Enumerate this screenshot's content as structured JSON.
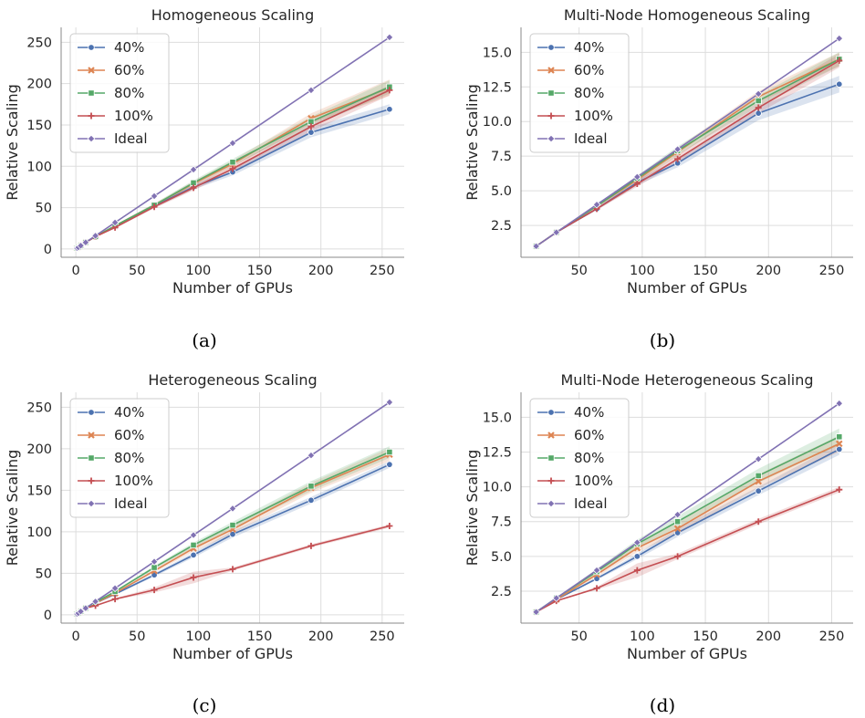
{
  "colors": {
    "40%": "#4c72b0",
    "60%": "#dd8452",
    "80%": "#55a868",
    "100%": "#c44e52",
    "Ideal": "#8172b3",
    "grid": "#dddddd",
    "axis": "#888888"
  },
  "markers": {
    "40%": "circle",
    "60%": "x-cross",
    "80%": "square",
    "100%": "plus",
    "Ideal": "diamond"
  },
  "chart_data": [
    {
      "type": "line",
      "title": "Homogeneous Scaling",
      "xlabel": "Number of GPUs",
      "ylabel": "Relative Scaling",
      "caption": "(a)",
      "grid": true,
      "legend": "top-left",
      "xlim": [
        -12,
        268
      ],
      "ylim": [
        -10,
        268
      ],
      "xticks": [
        0,
        50,
        100,
        150,
        200,
        250
      ],
      "yticks": [
        0,
        50,
        100,
        150,
        200,
        250
      ],
      "ytick_labels": [
        "0",
        "50",
        "100",
        "150",
        "200",
        "250"
      ],
      "x": [
        1,
        2,
        4,
        8,
        16,
        32,
        64,
        96,
        128,
        192,
        256
      ],
      "series": [
        {
          "name": "40%",
          "values": [
            1,
            2,
            4,
            8,
            15,
            28,
            52,
            75,
            93,
            141,
            169
          ],
          "band": [
            1,
            2,
            3,
            4,
            6,
            6
          ]
        },
        {
          "name": "60%",
          "values": [
            1,
            2,
            4,
            8,
            15,
            28,
            53,
            79,
            103,
            158,
            195
          ],
          "band": [
            1,
            2,
            3,
            4,
            6,
            10
          ]
        },
        {
          "name": "80%",
          "values": [
            1,
            2,
            4,
            8,
            15,
            28,
            53,
            80,
            105,
            154,
            196
          ],
          "band": [
            1,
            2,
            3,
            4,
            6,
            8
          ]
        },
        {
          "name": "100%",
          "values": [
            1,
            2,
            4,
            8,
            15,
            26,
            51,
            74,
            97,
            148,
            192
          ],
          "band": [
            1,
            2,
            3,
            4,
            6,
            6
          ]
        },
        {
          "name": "Ideal",
          "values": [
            1,
            2,
            4,
            8,
            16,
            32,
            64,
            96,
            128,
            192,
            256
          ]
        }
      ]
    },
    {
      "type": "line",
      "title": "Multi-Node Homogeneous Scaling",
      "xlabel": "Number of GPUs",
      "ylabel": "Relative Scaling",
      "caption": "(b)",
      "grid": true,
      "legend": "top-left",
      "xlim": [
        4,
        267
      ],
      "ylim": [
        0.2,
        16.8
      ],
      "xticks": [
        50,
        100,
        150,
        200,
        250
      ],
      "yticks": [
        2.5,
        5.0,
        7.5,
        10.0,
        12.5,
        15.0
      ],
      "ytick_labels": [
        "2.5",
        "5.0",
        "7.5",
        "10.0",
        "12.5",
        "15.0"
      ],
      "x": [
        16,
        32,
        64,
        96,
        128,
        192,
        256
      ],
      "series": [
        {
          "name": "40%",
          "values": [
            1,
            2,
            3.7,
            5.6,
            7.0,
            10.6,
            12.7
          ],
          "band": [
            0,
            0.1,
            0.2,
            0.3,
            0.5,
            0.6
          ]
        },
        {
          "name": "60%",
          "values": [
            1,
            2,
            3.9,
            5.8,
            7.8,
            11.8,
            14.5
          ],
          "band": [
            0,
            0.1,
            0.2,
            0.3,
            0.4,
            0.5
          ]
        },
        {
          "name": "80%",
          "values": [
            1,
            2,
            3.9,
            5.9,
            7.9,
            11.5,
            14.5
          ],
          "band": [
            0,
            0.1,
            0.2,
            0.3,
            0.4,
            0.5
          ]
        },
        {
          "name": "100%",
          "values": [
            1,
            2,
            3.7,
            5.5,
            7.3,
            11.0,
            14.4
          ],
          "band": [
            0,
            0.1,
            0.2,
            0.3,
            0.4,
            0.5
          ]
        },
        {
          "name": "Ideal",
          "values": [
            1,
            2,
            4,
            6,
            8,
            12,
            16
          ]
        }
      ]
    },
    {
      "type": "line",
      "title": "Heterogeneous Scaling",
      "xlabel": "Number of GPUs",
      "ylabel": "Relative Scaling",
      "caption": "(c)",
      "grid": true,
      "legend": "top-left",
      "xlim": [
        -12,
        268
      ],
      "ylim": [
        -10,
        268
      ],
      "xticks": [
        0,
        50,
        100,
        150,
        200,
        250
      ],
      "yticks": [
        0,
        50,
        100,
        150,
        200,
        250
      ],
      "ytick_labels": [
        "0",
        "50",
        "100",
        "150",
        "200",
        "250"
      ],
      "x": [
        1,
        2,
        4,
        8,
        16,
        32,
        64,
        96,
        128,
        192,
        256
      ],
      "series": [
        {
          "name": "40%",
          "values": [
            1,
            2,
            4,
            8,
            14,
            25,
            48,
            72,
            97,
            138,
            181
          ],
          "band": [
            1,
            2,
            3,
            4,
            4,
            4
          ]
        },
        {
          "name": "60%",
          "values": [
            1,
            2,
            4,
            8,
            14,
            26,
            53,
            80,
            103,
            153,
            193
          ],
          "band": [
            1,
            2,
            4,
            5,
            6,
            8
          ]
        },
        {
          "name": "80%",
          "values": [
            1,
            2,
            4,
            8,
            15,
            28,
            57,
            84,
            108,
            155,
            196
          ],
          "band": [
            1,
            2,
            3,
            4,
            6,
            7
          ]
        },
        {
          "name": "100%",
          "values": [
            1,
            2,
            4,
            8,
            11,
            19,
            30,
            45,
            55,
            83,
            107
          ],
          "band": [
            1,
            3,
            7,
            2,
            2,
            2
          ]
        },
        {
          "name": "Ideal",
          "values": [
            1,
            2,
            4,
            8,
            16,
            32,
            64,
            96,
            128,
            192,
            256
          ]
        }
      ]
    },
    {
      "type": "line",
      "title": "Multi-Node Heterogeneous Scaling",
      "xlabel": "Number of GPUs",
      "ylabel": "Relative Scaling",
      "caption": "(d)",
      "grid": true,
      "legend": "top-left",
      "xlim": [
        4,
        267
      ],
      "ylim": [
        0.2,
        16.8
      ],
      "xticks": [
        50,
        100,
        150,
        200,
        250
      ],
      "yticks": [
        2.5,
        5.0,
        7.5,
        10.0,
        12.5,
        15.0
      ],
      "ytick_labels": [
        "2.5",
        "5.0",
        "7.5",
        "10.0",
        "12.5",
        "15.0"
      ],
      "x": [
        16,
        32,
        64,
        96,
        128,
        192,
        256
      ],
      "series": [
        {
          "name": "40%",
          "values": [
            1,
            1.9,
            3.4,
            5.0,
            6.7,
            9.7,
            12.7
          ],
          "band": [
            0,
            0.1,
            0.2,
            0.3,
            0.3,
            0.4
          ]
        },
        {
          "name": "60%",
          "values": [
            1,
            1.9,
            3.7,
            5.6,
            7.0,
            10.4,
            13.1
          ],
          "band": [
            0,
            0.2,
            0.3,
            0.4,
            0.5,
            0.6
          ]
        },
        {
          "name": "80%",
          "values": [
            1,
            2,
            3.9,
            5.9,
            7.5,
            10.8,
            13.6
          ],
          "band": [
            0,
            0.2,
            0.3,
            0.4,
            0.5,
            0.6
          ]
        },
        {
          "name": "100%",
          "values": [
            1,
            1.8,
            2.7,
            4.0,
            5.0,
            7.5,
            9.8
          ],
          "band": [
            0,
            0.1,
            0.5,
            0.2,
            0.2,
            0.2
          ]
        },
        {
          "name": "Ideal",
          "values": [
            1,
            2,
            4,
            6,
            8,
            12,
            16
          ]
        }
      ]
    }
  ]
}
